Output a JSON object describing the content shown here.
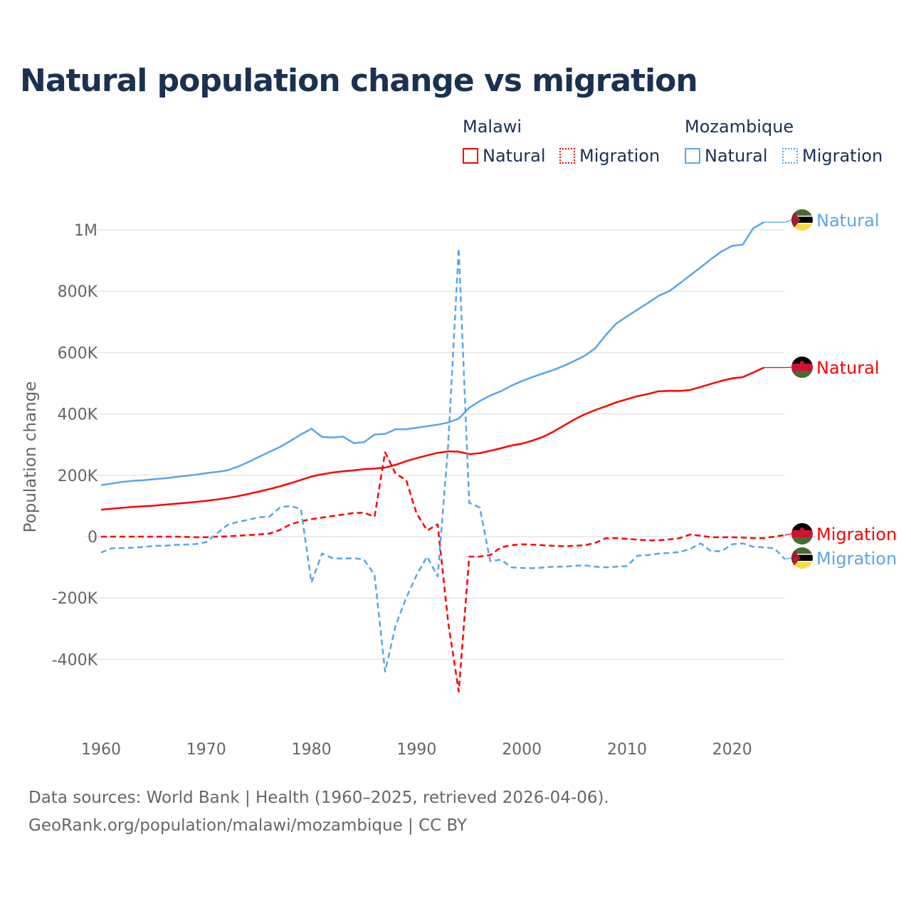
{
  "title": "Natural population change vs migration",
  "legend": {
    "groups": [
      {
        "country": "Malawi",
        "items": [
          "Natural",
          "Migration"
        ],
        "color": "#ff0000"
      },
      {
        "country": "Mozambique",
        "items": [
          "Natural",
          "Migration"
        ],
        "color": "#5aa5ea"
      }
    ]
  },
  "footer": {
    "line1": "Data sources: World Bank | Health (1960–2025, retrieved 2026-04-06).",
    "line2": "GeoRank.org/population/malawi/mozambique | CC BY"
  },
  "chart_data": {
    "type": "line",
    "title": "Natural population change vs migration",
    "xlabel": "",
    "ylabel": "Population change",
    "xlim": [
      1960,
      2025
    ],
    "ylim": [
      -500000,
      1050000
    ],
    "x_ticks": [
      1960,
      1970,
      1980,
      1990,
      2000,
      2010,
      2020
    ],
    "y_ticks": [
      -400000,
      -200000,
      0,
      200000,
      400000,
      600000,
      800000,
      1000000
    ],
    "y_tick_labels": [
      "-400K",
      "-200K",
      "0",
      "200K",
      "400K",
      "600K",
      "800K",
      "1M"
    ],
    "grid": true,
    "legend_position": "top-right",
    "start_year": 1960,
    "series": [
      {
        "name": "Mozambique Natural",
        "end_label": "Natural",
        "country": "Mozambique",
        "color": "#5aa5ea",
        "dash": false,
        "values_k": [
          168,
          173,
          178,
          182,
          184,
          187,
          190,
          194,
          198,
          202,
          207,
          211,
          216,
          228,
          243,
          260,
          276,
          292,
          312,
          333,
          352,
          325,
          323,
          326,
          305,
          308,
          333,
          335,
          350,
          350,
          355,
          360,
          365,
          372,
          385,
          420,
          442,
          460,
          474,
          492,
          507,
          520,
          532,
          543,
          557,
          573,
          590,
          615,
          658,
          695,
          718,
          740,
          762,
          785,
          800,
          825,
          852,
          878,
          905,
          930,
          948,
          952,
          1005,
          1025
        ]
      },
      {
        "name": "Malawi Natural",
        "end_label": "Natural",
        "country": "Malawi",
        "color": "#ff0000",
        "dash": false,
        "values_k": [
          88,
          91,
          94,
          97,
          99,
          101,
          104,
          107,
          110,
          113,
          117,
          121,
          126,
          132,
          139,
          147,
          155,
          164,
          174,
          185,
          196,
          203,
          209,
          213,
          216,
          220,
          222,
          225,
          234,
          246,
          256,
          265,
          273,
          278,
          277,
          269,
          272,
          280,
          288,
          297,
          303,
          313,
          325,
          342,
          362,
          382,
          399,
          413,
          425,
          438,
          448,
          458,
          465,
          474,
          475,
          475,
          478,
          488,
          498,
          508,
          516,
          520,
          535,
          551
        ]
      },
      {
        "name": "Malawi Migration",
        "end_label": "Migration",
        "country": "Malawi",
        "color": "#ff0000",
        "dash": true,
        "values_k": [
          0,
          0,
          0,
          0,
          0,
          0,
          0,
          0,
          -1,
          -2,
          -2,
          0,
          1,
          3,
          5,
          7,
          10,
          22,
          40,
          50,
          57,
          62,
          67,
          72,
          77,
          78,
          65,
          275,
          205,
          185,
          75,
          20,
          40,
          -280,
          -505,
          -65,
          -65,
          -60,
          -35,
          -28,
          -25,
          -26,
          -28,
          -30,
          -31,
          -30,
          -28,
          -20,
          -5,
          -5,
          -7,
          -10,
          -12,
          -12,
          -9,
          -5,
          7,
          3,
          -2,
          -2,
          -2,
          -3,
          -5,
          -5,
          0,
          5
        ]
      },
      {
        "name": "Mozambique Migration",
        "end_label": "Migration",
        "country": "Mozambique",
        "color": "#5aa5ea",
        "dash": true,
        "values_k": [
          -52,
          -38,
          -37,
          -36,
          -34,
          -30,
          -30,
          -27,
          -26,
          -24,
          -18,
          10,
          38,
          48,
          55,
          63,
          65,
          95,
          100,
          90,
          -150,
          -55,
          -70,
          -72,
          -70,
          -75,
          -125,
          -440,
          -290,
          -200,
          -125,
          -65,
          -130,
          300,
          940,
          110,
          95,
          -80,
          -75,
          -100,
          -102,
          -103,
          -101,
          -98,
          -98,
          -95,
          -94,
          -98,
          -100,
          -98,
          -96,
          -62,
          -60,
          -55,
          -53,
          -50,
          -40,
          -22,
          -48,
          -47,
          -25,
          -22,
          -33,
          -35,
          -38,
          -73
        ]
      }
    ]
  }
}
